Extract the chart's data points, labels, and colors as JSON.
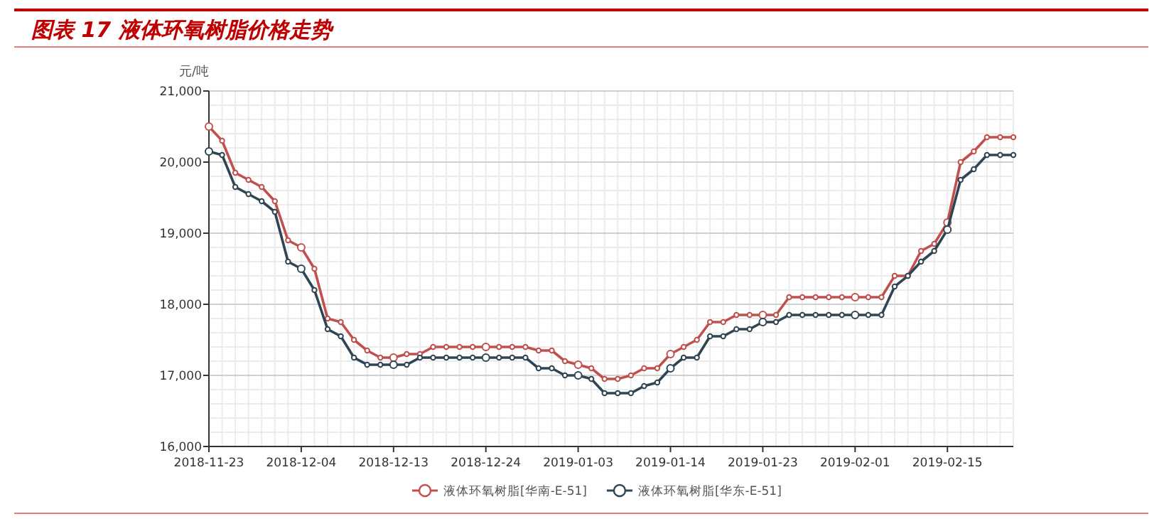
{
  "chart_data": {
    "type": "line",
    "title": "图表 17  液体环氧树脂价格走势",
    "ylabel": "元/吨",
    "categories": [
      "2018-11-23",
      null,
      null,
      null,
      null,
      null,
      null,
      "2018-12-04",
      null,
      null,
      null,
      null,
      null,
      null,
      "2018-12-13",
      null,
      null,
      null,
      null,
      null,
      null,
      "2018-12-24",
      null,
      null,
      null,
      null,
      null,
      null,
      "2019-01-03",
      null,
      null,
      null,
      null,
      null,
      null,
      "2019-01-14",
      null,
      null,
      null,
      null,
      null,
      null,
      "2019-01-23",
      null,
      null,
      null,
      null,
      null,
      null,
      "2019-02-01",
      null,
      null,
      null,
      null,
      null,
      null,
      "2019-02-15",
      null,
      null,
      null,
      null,
      null
    ],
    "series": [
      {
        "name": "液体环氧树脂[华南-E-51]",
        "color": "#c0504d",
        "values": [
          20500,
          20300,
          19850,
          19750,
          19650,
          19450,
          18900,
          18800,
          18500,
          17800,
          17750,
          17500,
          17350,
          17250,
          17250,
          17300,
          17300,
          17400,
          17400,
          17400,
          17400,
          17400,
          17400,
          17400,
          17400,
          17350,
          17350,
          17200,
          17150,
          17100,
          16950,
          16950,
          17000,
          17100,
          17100,
          17300,
          17400,
          17500,
          17750,
          17750,
          17850,
          17850,
          17850,
          17850,
          18100,
          18100,
          18100,
          18100,
          18100,
          18100,
          18100,
          18100,
          18400,
          18400,
          18750,
          18850,
          19150,
          20000,
          20150,
          20350,
          20350,
          20350
        ]
      },
      {
        "name": "液体环氧树脂[华东-E-51]",
        "color": "#2f4554",
        "values": [
          20150,
          20100,
          19650,
          19550,
          19450,
          19300,
          18600,
          18500,
          18200,
          17650,
          17550,
          17250,
          17150,
          17150,
          17150,
          17150,
          17250,
          17250,
          17250,
          17250,
          17250,
          17250,
          17250,
          17250,
          17250,
          17100,
          17100,
          17000,
          17000,
          16950,
          16750,
          16750,
          16750,
          16850,
          16900,
          17100,
          17250,
          17250,
          17550,
          17550,
          17650,
          17650,
          17750,
          17750,
          17850,
          17850,
          17850,
          17850,
          17850,
          17850,
          17850,
          17850,
          18250,
          18400,
          18600,
          18750,
          19050,
          19750,
          19900,
          20100,
          20100,
          20100
        ]
      }
    ],
    "ylim": [
      16000,
      21000
    ],
    "yticks": [
      {
        "value": 16000,
        "label": "16,000"
      },
      {
        "value": 17000,
        "label": "17,000"
      },
      {
        "value": 18000,
        "label": "18,000"
      },
      {
        "value": 19000,
        "label": "19,000"
      },
      {
        "value": 20000,
        "label": "20,000"
      },
      {
        "value": 21000,
        "label": "21,000"
      }
    ],
    "grid": true,
    "legend": "bottom",
    "marker": "circle",
    "line_style": "solid"
  }
}
